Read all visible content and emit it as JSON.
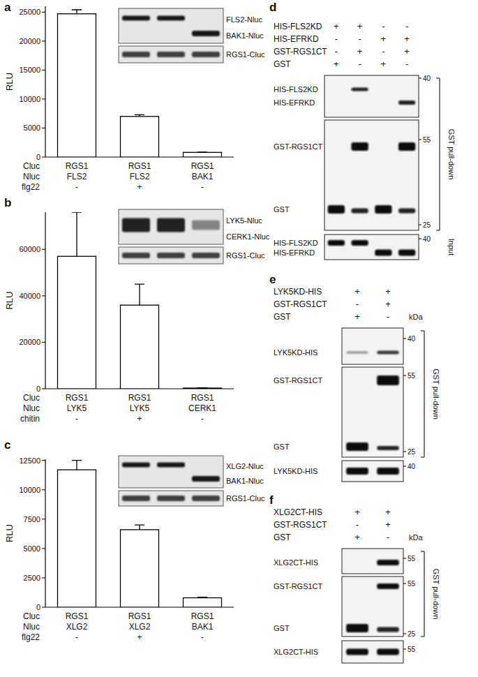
{
  "panel_labels": [
    "a",
    "b",
    "c",
    "d",
    "e",
    "f"
  ],
  "chart_data": [
    {
      "type": "bar",
      "y_label": "RLU",
      "values": [
        24700,
        7000,
        800
      ],
      "errors": [
        700,
        300,
        60
      ],
      "color": "#ffffff",
      "ylim": [
        0,
        26000
      ],
      "yticks": [
        0,
        5000,
        10000,
        15000,
        20000,
        25000
      ],
      "x_table": [
        {
          "label": "Cluc",
          "cells": [
            "RGS1",
            "RGS1",
            "RGS1"
          ]
        },
        {
          "label": "Nluc",
          "cells": [
            "FLS2",
            "FLS2",
            "BAK1"
          ]
        },
        {
          "label": "flg22",
          "cells": [
            "-",
            "+",
            "-"
          ]
        }
      ],
      "inset": {
        "labels": [
          "FLS2-Nluc",
          "BAK1-Nluc"
        ],
        "loading_label": "RGS1-Cluc"
      }
    },
    {
      "type": "bar",
      "y_label": "RLU",
      "values": [
        57000,
        36000,
        300
      ],
      "errors": [
        19000,
        9000,
        100
      ],
      "color": "#ffffff",
      "ylim": [
        0,
        76000
      ],
      "yticks": [
        0,
        20000,
        40000,
        60000
      ],
      "x_table": [
        {
          "label": "Cluc",
          "cells": [
            "RGS1",
            "RGS1",
            "RGS1"
          ]
        },
        {
          "label": "Nluc",
          "cells": [
            "LYK5",
            "LYK5",
            "CERK1"
          ]
        },
        {
          "label": "chitin",
          "cells": [
            "-",
            "+",
            "-"
          ]
        }
      ],
      "inset": {
        "labels": [
          "LYK5-Nluc",
          "CERK1-Nluc"
        ],
        "loading_label": "RGS1-Cluc"
      }
    },
    {
      "type": "bar",
      "y_label": "RLU",
      "values": [
        11700,
        6600,
        800
      ],
      "errors": [
        800,
        400,
        50
      ],
      "color": "#ffffff",
      "ylim": [
        0,
        12600
      ],
      "yticks": [
        0,
        2500,
        5000,
        7500,
        10000,
        12500
      ],
      "x_table": [
        {
          "label": "Cluc",
          "cells": [
            "RGS1",
            "RGS1",
            "RGS1"
          ]
        },
        {
          "label": "Nluc",
          "cells": [
            "XLG2",
            "XLG2",
            "BAK1"
          ]
        },
        {
          "label": "flg22",
          "cells": [
            "-",
            "+",
            "-"
          ]
        }
      ],
      "inset": {
        "labels": [
          "XLG2-Nluc",
          "BAK1-Nluc"
        ],
        "loading_label": "RGS1-Cluc"
      }
    }
  ],
  "blots": [
    {
      "conditions": [
        {
          "label": "HIS-FLS2KD",
          "signs": [
            "+",
            "+",
            "-",
            "-"
          ]
        },
        {
          "label": "HIS-EFRKD",
          "signs": [
            "-",
            "-",
            "+",
            "+"
          ]
        },
        {
          "label": "GST-RGS1CT",
          "signs": [
            "-",
            "+",
            "-",
            "+"
          ]
        },
        {
          "label": "GST",
          "signs": [
            "+",
            "-",
            "+",
            "-"
          ]
        }
      ],
      "pulldown_rows": [
        "HIS-FLS2KD",
        "HIS-EFRKD",
        "GST-RGS1CT",
        "GST"
      ],
      "input_rows": [
        "HIS-FLS2KD",
        "HIS-EFRKD"
      ],
      "markers": [
        40,
        55,
        25,
        40
      ],
      "bracket_label": "GST pull-down",
      "input_label": "Input"
    },
    {
      "conditions": [
        {
          "label": "LYK5KD-HIS",
          "signs": [
            "+",
            "+"
          ]
        },
        {
          "label": "GST-RGS1CT",
          "signs": [
            "-",
            "+"
          ]
        },
        {
          "label": "GST",
          "signs": [
            "+",
            "-"
          ]
        }
      ],
      "kda_label": "kDa",
      "pulldown_rows": [
        "LYK5KD-HIS",
        "GST-RGS1CT",
        "GST"
      ],
      "input_rows": [
        "LYK5KD-HIS"
      ],
      "markers": [
        40,
        55,
        25,
        40
      ],
      "bracket_label": "GST pull-down"
    },
    {
      "conditions": [
        {
          "label": "XLG2CT-HIS",
          "signs": [
            "+",
            "+"
          ]
        },
        {
          "label": "GST-RGS1CT",
          "signs": [
            "-",
            "+"
          ]
        },
        {
          "label": "GST",
          "signs": [
            "+",
            "-"
          ]
        }
      ],
      "kda_label": "kDa",
      "pulldown_rows": [
        "XLG2CT-HIS",
        "GST-RGS1CT",
        "GST"
      ],
      "input_rows": [
        "XLG2CT-HIS"
      ],
      "markers": [
        55,
        55,
        25,
        55
      ],
      "bracket_label": "GST pull-down"
    }
  ]
}
